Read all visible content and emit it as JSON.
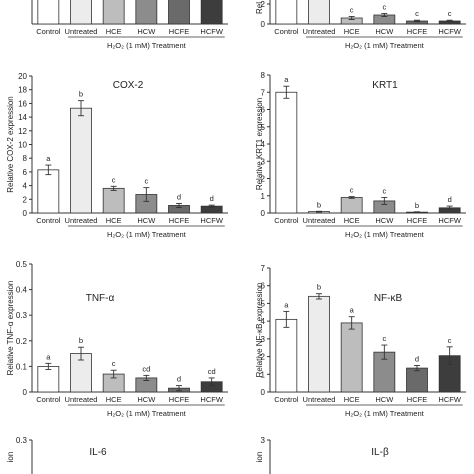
{
  "colors": {
    "Control": "#ffffff",
    "Untreated": "#ececec",
    "HCE": "#bdbdbd",
    "HCW": "#8c8c8c",
    "HCFE": "#6a6a6a",
    "HCFW": "#3d3d3d",
    "axis": "#333333",
    "error_bar": "#333333"
  },
  "treatment_label": "H₂O₂ (1 mM) Treatment",
  "chart_data": [
    {
      "id": "top-left-partial",
      "type": "bar",
      "title": "",
      "ylabel": "",
      "categories": [
        "Control",
        "Untreated",
        "HCE",
        "HCW",
        "HCFE",
        "HCFW"
      ],
      "group_label": "H₂O₂ (1 mM) Treatment",
      "series": [
        {
          "values": [
            1,
            1,
            1,
            1,
            1,
            1
          ],
          "errors": [
            0,
            0,
            0,
            0,
            0,
            0
          ],
          "letters": [
            "",
            "",
            "",
            "",
            "",
            ""
          ]
        }
      ],
      "yticks": [],
      "ylim": [
        0,
        1
      ],
      "partial": true
    },
    {
      "id": "top-right-partial",
      "type": "bar",
      "title": "",
      "ylabel": "Rel",
      "categories": [
        "Control",
        "Untreated",
        "HCE",
        "HCW",
        "HCFE",
        "HCFW"
      ],
      "group_label": "H₂O₂ (1 mM) Treatment",
      "series": [
        {
          "values": [
            2.6,
            2.6,
            0.6,
            0.9,
            0.3,
            0.3
          ],
          "errors": [
            0,
            0,
            0.15,
            0.15,
            0.08,
            0.08
          ],
          "letters": [
            "",
            "",
            "c",
            "c",
            "c",
            "c"
          ]
        }
      ],
      "yticks": [
        "0",
        "2"
      ],
      "ylim": [
        0,
        2.6
      ],
      "partial": true
    },
    {
      "id": "cox2",
      "type": "bar",
      "title": "COX-2",
      "ylabel": "Relative COX-2 expression",
      "categories": [
        "Control",
        "Untreated",
        "HCE",
        "HCW",
        "HCFE",
        "HCFW"
      ],
      "group_label": "H₂O₂ (1 mM) Treatment",
      "series": [
        {
          "values": [
            6.3,
            15.3,
            3.6,
            2.7,
            1.1,
            1.0
          ],
          "errors": [
            0.7,
            1.1,
            0.3,
            1.0,
            0.3,
            0.15
          ],
          "letters": [
            "a",
            "b",
            "c",
            "c",
            "d",
            "d"
          ]
        }
      ],
      "yticks": [
        "0",
        "2",
        "4",
        "6",
        "8",
        "10",
        "12",
        "14",
        "16",
        "18",
        "20"
      ],
      "ylim": [
        0,
        20
      ]
    },
    {
      "id": "krt1",
      "type": "bar",
      "title": "KRT1",
      "ylabel": "Relative KRT1 expression",
      "categories": [
        "Control",
        "Untreated",
        "HCE",
        "HCW",
        "HCFE",
        "HCFW"
      ],
      "group_label": "H₂O₂ (1 mM) Treatment",
      "series": [
        {
          "values": [
            7.0,
            0.08,
            0.9,
            0.7,
            0.05,
            0.3
          ],
          "errors": [
            0.35,
            0.02,
            0.05,
            0.2,
            0.02,
            0.1
          ],
          "letters": [
            "a",
            "b",
            "c",
            "c",
            "b",
            "d"
          ]
        }
      ],
      "yticks": [
        "0",
        "1",
        "2",
        "3",
        "4",
        "5",
        "6",
        "7",
        "8"
      ],
      "ylim": [
        0,
        8
      ]
    },
    {
      "id": "tnfa",
      "type": "bar",
      "title": "TNF-α",
      "ylabel": "Relative TNF-α expression",
      "categories": [
        "Control",
        "Untreated",
        "HCE",
        "HCW",
        "HCFE",
        "HCFW"
      ],
      "group_label": "H₂O₂ (1 mM) Treatment",
      "series": [
        {
          "values": [
            0.1,
            0.15,
            0.07,
            0.055,
            0.015,
            0.04
          ],
          "errors": [
            0.012,
            0.025,
            0.015,
            0.01,
            0.01,
            0.015
          ],
          "letters": [
            "a",
            "b",
            "c",
            "cd",
            "d",
            "cd"
          ]
        }
      ],
      "yticks": [
        "0",
        "0.1",
        "0.2",
        "0.3",
        "0.4",
        "0.5"
      ],
      "ylim": [
        0,
        0.5
      ]
    },
    {
      "id": "nfkb",
      "type": "bar",
      "title": "NF-κB",
      "ylabel": "Relative NF-κB expression",
      "categories": [
        "Control",
        "Untreated",
        "HCE",
        "HCW",
        "HCFE",
        "HCFW"
      ],
      "group_label": "H₂O₂ (1 mM) Treatment",
      "series": [
        {
          "values": [
            4.1,
            5.4,
            3.9,
            2.25,
            1.35,
            2.05
          ],
          "errors": [
            0.45,
            0.15,
            0.35,
            0.4,
            0.15,
            0.5
          ],
          "letters": [
            "a",
            "b",
            "a",
            "c",
            "d",
            "c"
          ]
        }
      ],
      "yticks": [
        "0",
        "1",
        "2",
        "3",
        "4",
        "5",
        "6",
        "7"
      ],
      "ylim": [
        0,
        7
      ]
    },
    {
      "id": "il6-partial",
      "type": "bar",
      "title": "IL-6",
      "ylabel": "ion",
      "categories": [],
      "series": [],
      "yticks": [
        "0.3"
      ],
      "ylim": [
        0,
        0.3
      ],
      "partial": true
    },
    {
      "id": "ilb-partial",
      "type": "bar",
      "title": "IL-β",
      "ylabel": "ion",
      "categories": [],
      "series": [],
      "yticks": [
        "3"
      ],
      "ylim": [
        0,
        3
      ],
      "partial": true
    }
  ]
}
